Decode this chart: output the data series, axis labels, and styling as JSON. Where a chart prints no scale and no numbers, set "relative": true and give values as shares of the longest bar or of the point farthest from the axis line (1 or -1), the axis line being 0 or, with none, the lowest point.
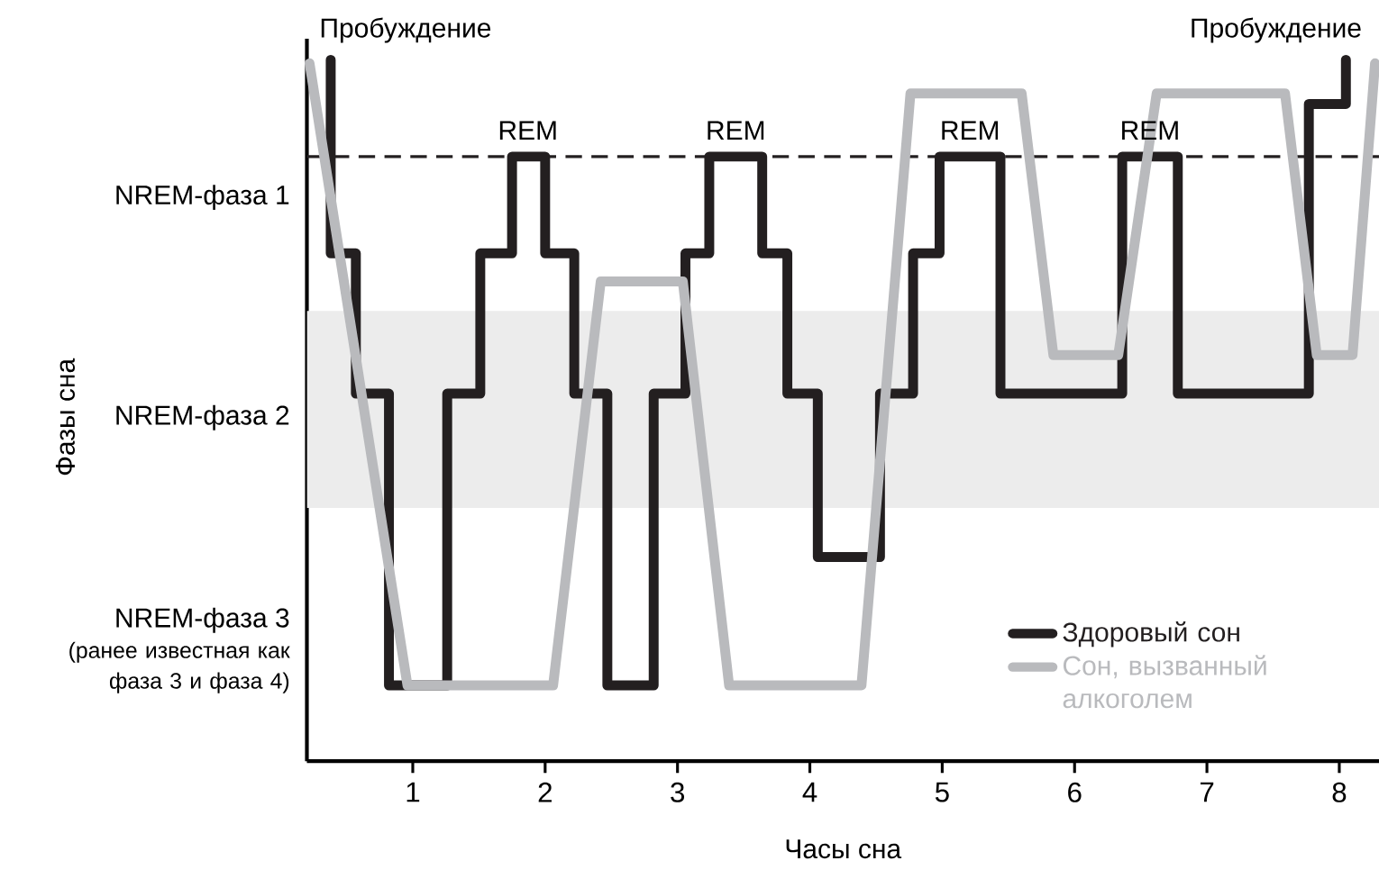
{
  "chart_data": {
    "type": "line",
    "relative": true,
    "xlabel": "Часы сна",
    "xlim": [
      0.2,
      8.3
    ],
    "xticks": [
      1,
      2,
      3,
      4,
      5,
      6,
      7,
      8
    ],
    "series": [
      {
        "name": "Здоровый сон",
        "type": "step",
        "color": "#231f20",
        "x": [
          0.38,
          0.38,
          0.57,
          0.82,
          1.26,
          1.51,
          1.75,
          2.0,
          2.22,
          2.47,
          2.82,
          3.06,
          3.24,
          3.64,
          3.83,
          4.06,
          4.53,
          4.78,
          4.98,
          5.44,
          6.36,
          6.78,
          7.77,
          8.05
        ],
        "values": [
          1,
          0.724,
          0.524,
          0.108,
          0.524,
          0.724,
          0.862,
          0.724,
          0.524,
          0.108,
          0.524,
          0.724,
          0.862,
          0.724,
          0.524,
          0.291,
          0.524,
          0.724,
          0.862,
          0.524,
          0.862,
          0.524,
          0.937,
          1
        ]
      },
      {
        "name": "Сон, вызванный алкоголем",
        "color": "#b9babd",
        "x": [
          0.22,
          0.96,
          2.06,
          2.42,
          3.04,
          3.39,
          4.39,
          4.76,
          5.6,
          5.84,
          6.33,
          6.62,
          7.59,
          7.83,
          8.1,
          8.27
        ],
        "values": [
          0.995,
          0.108,
          0.108,
          0.684,
          0.684,
          0.108,
          0.108,
          0.952,
          0.952,
          0.579,
          0.579,
          0.952,
          0.952,
          0.579,
          0.579,
          0.995
        ]
      }
    ],
    "ref_lines": [
      {
        "axis": "y",
        "value": 0.862,
        "line_style": "dashed",
        "color": "#231f20"
      }
    ],
    "bands": [
      {
        "axis": "y",
        "from": 0.361,
        "to": 0.642,
        "color": "#ececec"
      }
    ],
    "annotations": [
      "NREM-фаза 1",
      "NREM-фаза 2",
      "NREM-фаза 3",
      "(ранее известная как фаза 3 и фаза 4)",
      {
        "text": "Пробуждение",
        "x": 0.38,
        "y": 1
      },
      {
        "text": "REM",
        "x": 1.87,
        "y": 0.862
      },
      {
        "text": "REM",
        "x": 3.44,
        "y": 0.862
      },
      {
        "text": "REM",
        "x": 5.21,
        "y": 0.862
      },
      {
        "text": "REM",
        "x": 6.57,
        "y": 0.862
      },
      {
        "text": "Пробуждение",
        "x": 8.05,
        "y": 1
      },
      "Фазы сна"
    ],
    "legend": "bottom right"
  }
}
